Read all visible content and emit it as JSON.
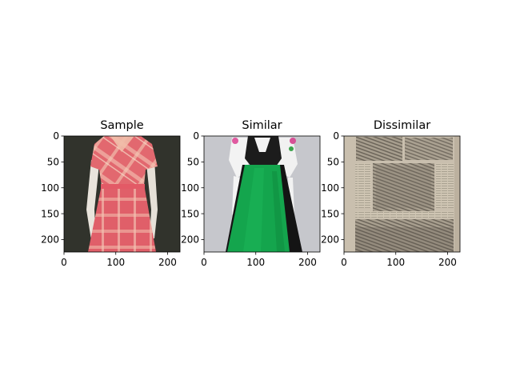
{
  "chart_data": [
    {
      "type": "image",
      "title": "Sample",
      "xlim": [
        0,
        224
      ],
      "ylim": [
        224,
        0
      ],
      "xticks": [
        0,
        100,
        200
      ],
      "yticks": [
        0,
        50,
        100,
        150,
        200
      ],
      "image": "photo of a pink plaid short-sleeve dress on a mannequin, dark background",
      "colors": {
        "background": "#2d2e29",
        "dress": "#e2686f",
        "plaid": "#efb7a8"
      }
    },
    {
      "type": "image",
      "title": "Similar",
      "xlim": [
        0,
        224
      ],
      "ylim": [
        224,
        0
      ],
      "xticks": [
        0,
        100,
        200
      ],
      "yticks": [
        0,
        50,
        100,
        150,
        200
      ],
      "image": "photo of a dirndl with white blouse, black bodice and green apron on a mannequin, light grey background",
      "colors": {
        "background": "#c6c7cc",
        "apron": "#14a54d",
        "bodice": "#1c1c1c",
        "blouse": "#f2f2f2"
      }
    },
    {
      "type": "image",
      "title": "Dissimilar",
      "xlim": [
        0,
        224
      ],
      "ylim": [
        224,
        0
      ],
      "xticks": [
        0,
        100,
        200
      ],
      "yticks": [
        0,
        50,
        100,
        150,
        200
      ],
      "image": "scan of an old newspaper page with engraved illustrations and text columns",
      "colors": {
        "paper": "#c9bfae",
        "ink": "#5c554b"
      }
    }
  ]
}
